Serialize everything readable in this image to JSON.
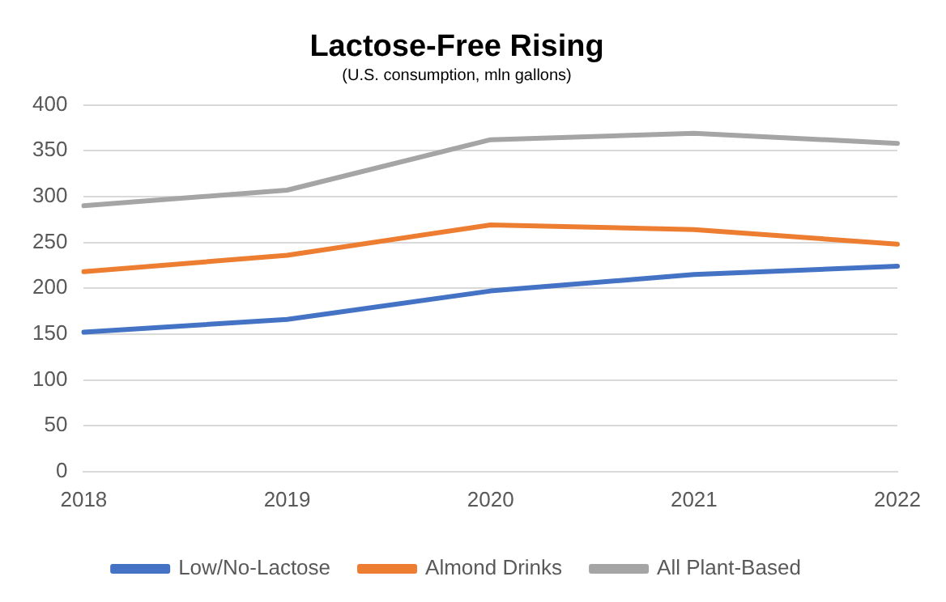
{
  "chart_data": {
    "type": "line",
    "title": "Lactose-Free Rising",
    "subtitle": "(U.S. consumption, mln gallons)",
    "categories": [
      "2018",
      "2019",
      "2020",
      "2021",
      "2022"
    ],
    "series": [
      {
        "name": "Low/No-Lactose",
        "color": "#4472c4",
        "values": [
          152,
          166,
          197,
          215,
          224
        ]
      },
      {
        "name": "Almond Drinks",
        "color": "#ed7d31",
        "values": [
          218,
          236,
          269,
          264,
          248
        ]
      },
      {
        "name": "All Plant-Based",
        "color": "#a5a5a5",
        "values": [
          290,
          307,
          362,
          369,
          358
        ]
      }
    ],
    "ylim": [
      0,
      400
    ],
    "yticks": [
      0,
      50,
      100,
      150,
      200,
      250,
      300,
      350,
      400
    ],
    "grid": "y",
    "legend": "bottom",
    "marker": "none",
    "line_style": "solid"
  }
}
